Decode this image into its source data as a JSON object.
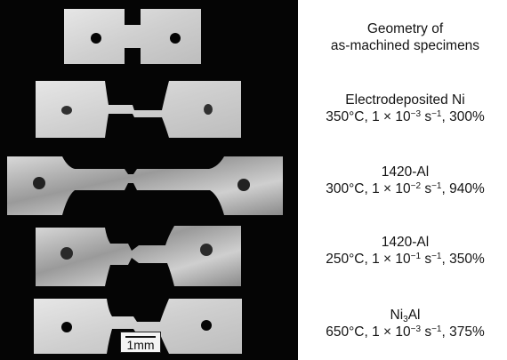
{
  "captions": [
    {
      "line1": "Geometry of",
      "line2": "as-machined specimens"
    },
    {
      "line1": "Electrodeposited Ni",
      "temp": "350°C, 1 × 10",
      "exp": "−3",
      "tail": " s",
      "exp2": "−1",
      "pct": ", 300%"
    },
    {
      "line1": "1420-Al",
      "temp": "300°C, 1 × 10",
      "exp": "−2",
      "tail": " s",
      "exp2": "−1",
      "pct": ", 940%"
    },
    {
      "line1": "1420-Al",
      "temp": "250°C, 1 × 10",
      "exp": "−1",
      "tail": " s",
      "exp2": "−1",
      "pct": ", 350%"
    },
    {
      "line1a": "Ni",
      "sub": "3",
      "line1b": "Al",
      "temp": "650°C, 1 × 10",
      "exp": "−3",
      "tail": " s",
      "exp2": "−1",
      "pct": ", 375%"
    }
  ],
  "scale_bar": {
    "label": "1mm"
  },
  "colors": {
    "background": "#050505",
    "specimen": "#c8c8c8",
    "caption_text": "#141414"
  }
}
